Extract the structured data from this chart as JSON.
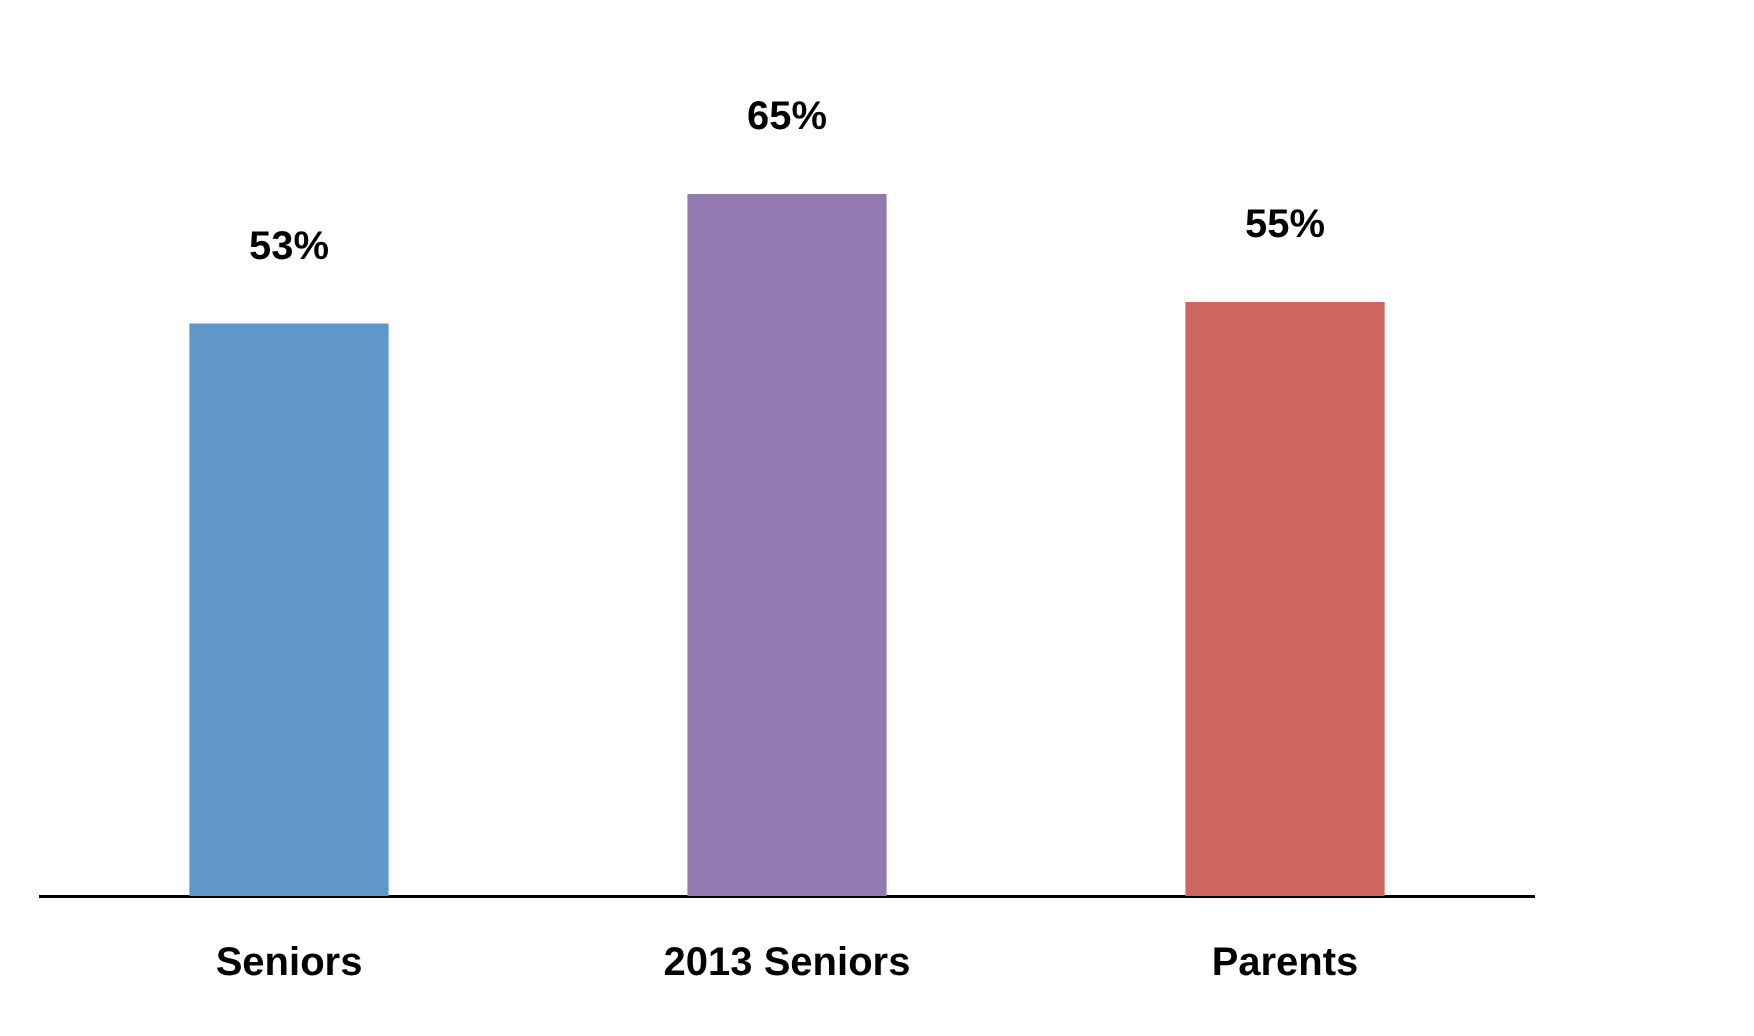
{
  "chart_data": {
    "type": "bar",
    "categories": [
      "Seniors",
      "2013 Seniors",
      "Parents"
    ],
    "values": [
      53,
      65,
      55
    ],
    "colors": [
      "#6096c9",
      "#927ab0",
      "#cc665e"
    ],
    "value_labels": [
      "53%",
      "65%",
      "55%"
    ],
    "tick_labels": "x",
    "grid": false,
    "legend": false
  }
}
